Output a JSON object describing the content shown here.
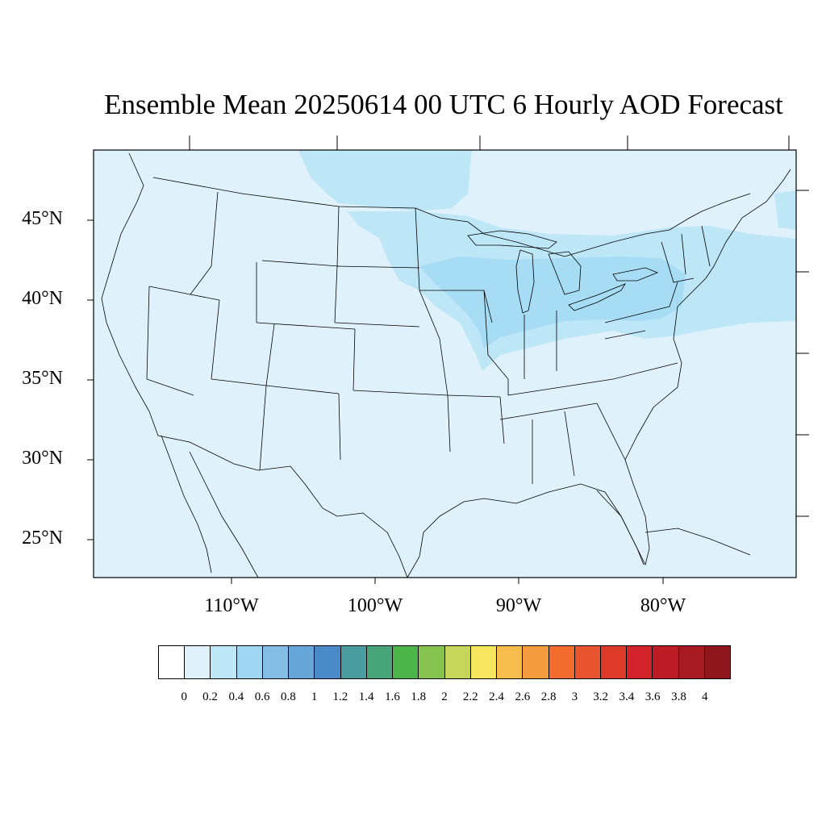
{
  "title": "Ensemble Mean 20250614 00 UTC 6 Hourly AOD Forecast",
  "lat_labels": [
    "45°N",
    "40°N",
    "35°N",
    "30°N",
    "25°N"
  ],
  "lon_labels": [
    "110°W",
    "100°W",
    "90°W",
    "80°W"
  ],
  "colorbar": {
    "labels": [
      "0",
      "0.2",
      "0.4",
      "0.6",
      "0.8",
      "1",
      "1.2",
      "1.4",
      "1.6",
      "1.8",
      "2",
      "2.2",
      "2.4",
      "2.6",
      "2.8",
      "3",
      "3.2",
      "3.4",
      "3.6",
      "3.8",
      "4"
    ],
    "colors": [
      "#ffffff",
      "#dff2fb",
      "#bde6f7",
      "#9fd7f3",
      "#83bde6",
      "#67a6d8",
      "#4a8ac8",
      "#4a9ca0",
      "#48a57a",
      "#4bb54a",
      "#87c44f",
      "#c5d65b",
      "#f6e55f",
      "#f6bd4c",
      "#f49a3f",
      "#f26c2e",
      "#e8542d",
      "#de3a2a",
      "#d2232b",
      "#bd1c26",
      "#a81a22",
      "#8f161c"
    ]
  },
  "colors": {
    "background_field": "#dff2fb",
    "enhanced_field": "#bde6f7",
    "high_field": "#a7dcf5",
    "boundary": "#000000"
  }
}
